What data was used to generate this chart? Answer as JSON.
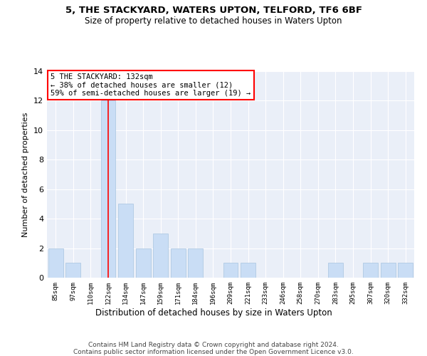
{
  "title1": "5, THE STACKYARD, WATERS UPTON, TELFORD, TF6 6BF",
  "title2": "Size of property relative to detached houses in Waters Upton",
  "xlabel": "Distribution of detached houses by size in Waters Upton",
  "ylabel": "Number of detached properties",
  "categories": [
    "85sqm",
    "97sqm",
    "110sqm",
    "122sqm",
    "134sqm",
    "147sqm",
    "159sqm",
    "171sqm",
    "184sqm",
    "196sqm",
    "209sqm",
    "221sqm",
    "233sqm",
    "246sqm",
    "258sqm",
    "270sqm",
    "283sqm",
    "295sqm",
    "307sqm",
    "320sqm",
    "332sqm"
  ],
  "values": [
    2,
    1,
    0,
    12,
    5,
    2,
    3,
    2,
    2,
    0,
    1,
    1,
    0,
    0,
    0,
    0,
    1,
    0,
    1,
    1,
    1
  ],
  "bar_color": "#c9ddf5",
  "bar_edge_color": "#a8c4e0",
  "red_line_x": 3,
  "annotation_line1": "5 THE STACKYARD: 132sqm",
  "annotation_line2": "← 38% of detached houses are smaller (12)",
  "annotation_line3": "59% of semi-detached houses are larger (19) →",
  "ylim": [
    0,
    14
  ],
  "yticks": [
    0,
    2,
    4,
    6,
    8,
    10,
    12,
    14
  ],
  "bg_color": "#eaeff8",
  "grid_color": "white",
  "footer1": "Contains HM Land Registry data © Crown copyright and database right 2024.",
  "footer2": "Contains public sector information licensed under the Open Government Licence v3.0."
}
